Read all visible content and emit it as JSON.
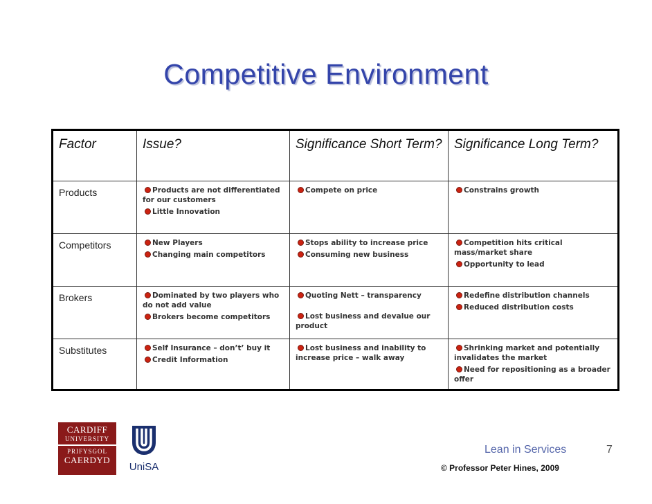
{
  "title": "Competitive Environment",
  "table": {
    "headers": [
      "Factor",
      "Issue?",
      "Significance Short Term?",
      "Significance Long Term?"
    ],
    "rows": [
      {
        "factor": "Products",
        "issue": [
          "Products are not differentiated for our customers",
          "Little Innovation"
        ],
        "short": [
          "Compete on price"
        ],
        "long": [
          "Constrains growth"
        ]
      },
      {
        "factor": "Competitors",
        "issue": [
          "New Players",
          "Changing main competitors"
        ],
        "short": [
          "Stops ability to increase price",
          "Consuming new business"
        ],
        "long": [
          "Competition hits critical mass/market share",
          "Opportunity to lead"
        ]
      },
      {
        "factor": "Brokers",
        "issue": [
          "Dominated by two players who do not add value",
          "Brokers become competitors"
        ],
        "short": [
          "Quoting Nett – transparency",
          "Lost business and devalue our product"
        ],
        "long": [
          "Redefine distribution channels",
          "Reduced distribution costs"
        ]
      },
      {
        "factor": "Substitutes",
        "issue": [
          "Self Insurance – don’t’ buy it",
          "Credit Information"
        ],
        "short": [
          "Lost business and inability to increase price – walk away"
        ],
        "long": [
          "Shrinking market and potentially invalidates the market",
          "Need for repositioning as a broader offer"
        ]
      }
    ]
  },
  "footer": {
    "lean": "Lean in Services",
    "page": "7",
    "copyright": "© Professor Peter Hines, 2009"
  },
  "logos": {
    "cardiff": [
      "CARDIFF",
      "UNIVERSITY",
      "PRIFYSGOL",
      "CAERDYD"
    ],
    "unisa": "UniSA"
  },
  "colors": {
    "title": "#3344aa",
    "bullet": "#cc2211",
    "cardiff": "#8a1a1a",
    "unisa": "#1a2f6e"
  }
}
